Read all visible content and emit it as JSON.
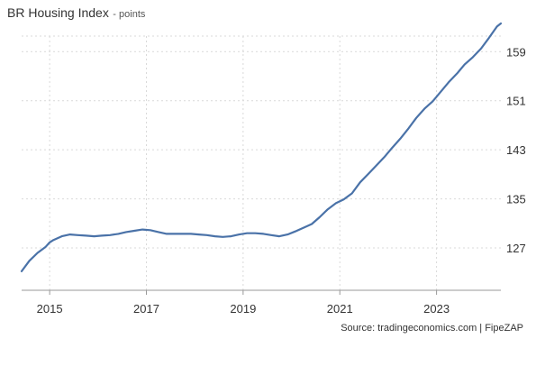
{
  "chart_data": {
    "type": "line",
    "title": "BR Housing Index",
    "subtitle": "- points",
    "source": "Source: tradingeconomics.com | FipeZAP",
    "xlabel": "",
    "ylabel": "",
    "x_ticks": [
      "2015",
      "2017",
      "2019",
      "2021",
      "2023"
    ],
    "y_ticks": [
      "127",
      "135",
      "143",
      "151",
      "159"
    ],
    "xlim": [
      2014.42,
      2024.33
    ],
    "ylim": [
      120.1,
      163.6
    ],
    "grid": true,
    "legend": "none",
    "line_color": "#4a72a8",
    "series": [
      {
        "x": [
          2014.42,
          2014.58,
          2014.75,
          2014.92,
          2015.0,
          2015.08,
          2015.25,
          2015.42,
          2015.58,
          2015.75,
          2015.92,
          2016.08,
          2016.25,
          2016.42,
          2016.58,
          2016.75,
          2016.92,
          2017.08,
          2017.25,
          2017.42,
          2017.58,
          2017.75,
          2017.92,
          2018.08,
          2018.25,
          2018.42,
          2018.58,
          2018.75,
          2018.92,
          2019.08,
          2019.25,
          2019.42,
          2019.58,
          2019.75,
          2019.92,
          2020.08,
          2020.25,
          2020.42,
          2020.58,
          2020.75,
          2020.92,
          2021.08,
          2021.25,
          2021.42,
          2021.58,
          2021.75,
          2021.92,
          2022.08,
          2022.25,
          2022.42,
          2022.58,
          2022.75,
          2022.92,
          2023.08,
          2023.25,
          2023.42,
          2023.58,
          2023.75,
          2023.92,
          2024.08,
          2024.25,
          2024.33
        ],
        "y": [
          123.2,
          124.9,
          126.2,
          127.2,
          127.9,
          128.3,
          128.9,
          129.2,
          129.1,
          129.0,
          128.9,
          129.0,
          129.1,
          129.3,
          129.6,
          129.8,
          130.0,
          129.9,
          129.6,
          129.3,
          129.3,
          129.3,
          129.3,
          129.2,
          129.1,
          128.9,
          128.8,
          128.9,
          129.2,
          129.4,
          129.4,
          129.3,
          129.1,
          128.9,
          129.2,
          129.7,
          130.3,
          130.9,
          132.0,
          133.3,
          134.3,
          134.9,
          135.9,
          137.7,
          139.0,
          140.4,
          141.8,
          143.3,
          144.8,
          146.5,
          148.2,
          149.7,
          150.9,
          152.4,
          154.0,
          155.4,
          156.9,
          158.1,
          159.5,
          161.2,
          163.1,
          163.6
        ]
      }
    ]
  }
}
